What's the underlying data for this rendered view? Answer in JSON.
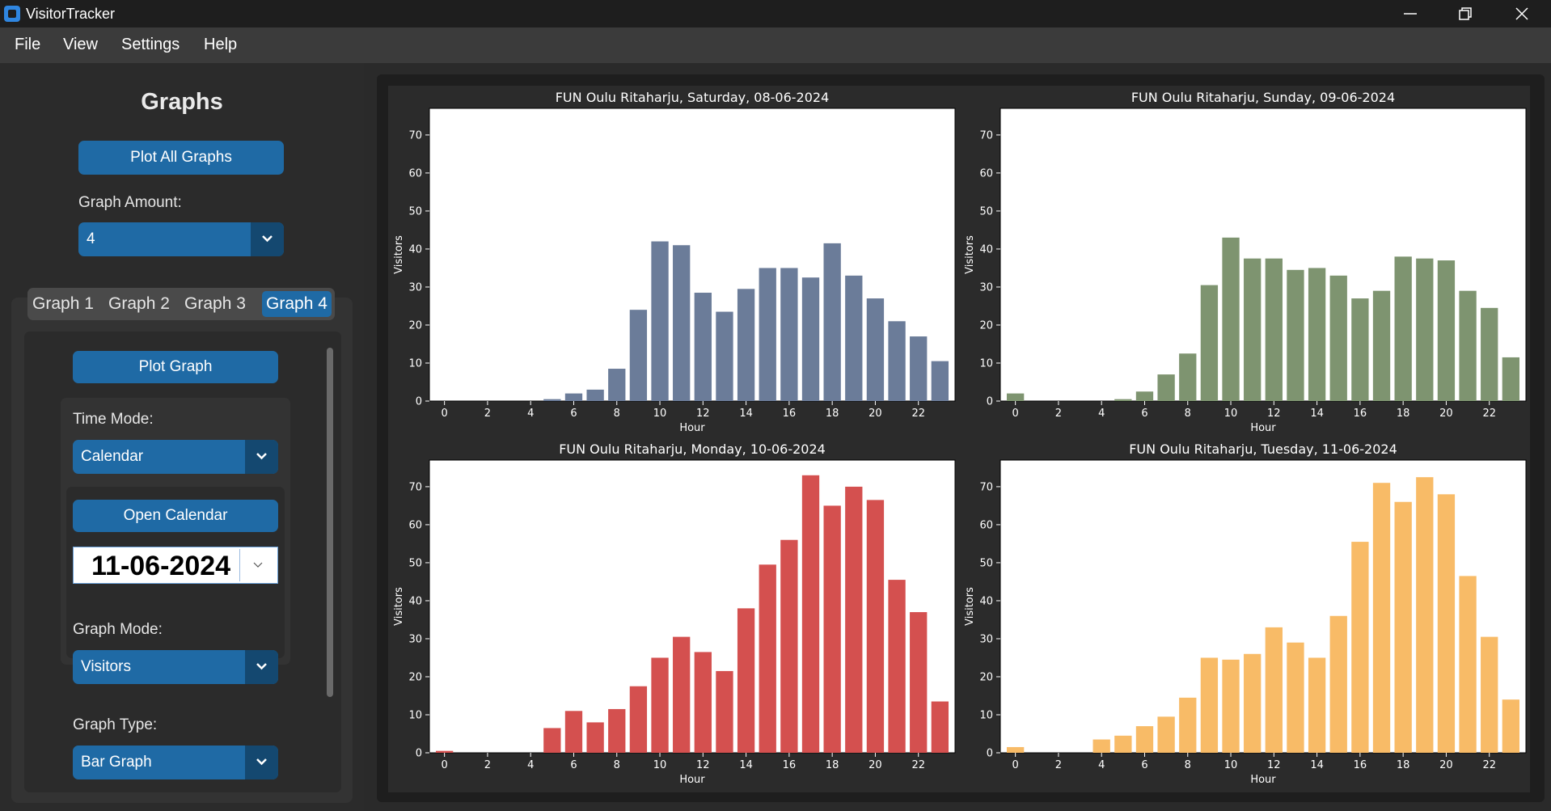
{
  "window": {
    "title": "VisitorTracker"
  },
  "menu": [
    "File",
    "View",
    "Settings",
    "Help"
  ],
  "sidebar": {
    "title": "Graphs",
    "plot_all_label": "Plot All Graphs",
    "graph_amount_label": "Graph Amount:",
    "graph_amount_value": "4",
    "tabs": [
      "Graph 1",
      "Graph 2",
      "Graph 3",
      "Graph 4"
    ],
    "selected_tab": "Graph 4",
    "plot_graph_label": "Plot Graph",
    "time_mode_label": "Time Mode:",
    "time_mode_value": "Calendar",
    "open_calendar_label": "Open Calendar",
    "date_value": "11-06-2024",
    "graph_mode_label": "Graph Mode:",
    "graph_mode_value": "Visitors",
    "graph_type_label": "Graph Type:",
    "graph_type_value": "Bar Graph"
  },
  "chart_data": [
    {
      "type": "bar",
      "title": "FUN Oulu Ritaharju, Saturday, 08-06-2024",
      "xlabel": "Hour",
      "ylabel": "Visitors",
      "x": [
        0,
        1,
        2,
        3,
        4,
        5,
        6,
        7,
        8,
        9,
        10,
        11,
        12,
        13,
        14,
        15,
        16,
        17,
        18,
        19,
        20,
        21,
        22,
        23
      ],
      "values": [
        0,
        0,
        0,
        0,
        0,
        0.5,
        2,
        3,
        8.5,
        24,
        42,
        41,
        28.5,
        23.5,
        29.5,
        35,
        35,
        32.5,
        41.5,
        33,
        27,
        21,
        17,
        10.5
      ],
      "ylim": [
        0,
        77
      ],
      "yticks": [
        0,
        10,
        20,
        30,
        40,
        50,
        60,
        70
      ],
      "xticks": [
        0,
        2,
        4,
        6,
        8,
        10,
        12,
        14,
        16,
        18,
        20,
        22
      ],
      "color": "#6b7c99"
    },
    {
      "type": "bar",
      "title": "FUN Oulu Ritaharju, Sunday, 09-06-2024",
      "xlabel": "Hour",
      "ylabel": "Visitors",
      "x": [
        0,
        1,
        2,
        3,
        4,
        5,
        6,
        7,
        8,
        9,
        10,
        11,
        12,
        13,
        14,
        15,
        16,
        17,
        18,
        19,
        20,
        21,
        22,
        23
      ],
      "values": [
        2,
        0,
        0,
        0,
        0,
        0.5,
        2.5,
        7,
        12.5,
        30.5,
        43,
        37.5,
        37.5,
        34.5,
        35,
        33,
        27,
        29,
        38,
        37.5,
        37,
        29,
        24.5,
        11.5
      ],
      "ylim": [
        0,
        77
      ],
      "yticks": [
        0,
        10,
        20,
        30,
        40,
        50,
        60,
        70
      ],
      "xticks": [
        0,
        2,
        4,
        6,
        8,
        10,
        12,
        14,
        16,
        18,
        20,
        22
      ],
      "color": "#7e9470"
    },
    {
      "type": "bar",
      "title": "FUN Oulu Ritaharju, Monday, 10-06-2024",
      "xlabel": "Hour",
      "ylabel": "Visitors",
      "x": [
        0,
        1,
        2,
        3,
        4,
        5,
        6,
        7,
        8,
        9,
        10,
        11,
        12,
        13,
        14,
        15,
        16,
        17,
        18,
        19,
        20,
        21,
        22,
        23
      ],
      "values": [
        0.5,
        0,
        0,
        0,
        0,
        6.5,
        11,
        8,
        11.5,
        17.5,
        25,
        30.5,
        26.5,
        21.5,
        38,
        49.5,
        56,
        73,
        65,
        70,
        66.5,
        45.5,
        37,
        13.5
      ],
      "ylim": [
        0,
        77
      ],
      "yticks": [
        0,
        10,
        20,
        30,
        40,
        50,
        60,
        70
      ],
      "xticks": [
        0,
        2,
        4,
        6,
        8,
        10,
        12,
        14,
        16,
        18,
        20,
        22
      ],
      "color": "#d4504f"
    },
    {
      "type": "bar",
      "title": "FUN Oulu Ritaharju, Tuesday, 11-06-2024",
      "xlabel": "Hour",
      "ylabel": "Visitors",
      "x": [
        0,
        1,
        2,
        3,
        4,
        5,
        6,
        7,
        8,
        9,
        10,
        11,
        12,
        13,
        14,
        15,
        16,
        17,
        18,
        19,
        20,
        21,
        22,
        23
      ],
      "values": [
        1.5,
        0,
        0,
        0,
        3.5,
        4.5,
        7,
        9.5,
        14.5,
        25,
        24.5,
        26,
        33,
        29,
        25,
        36,
        55.5,
        71,
        66,
        72.5,
        68,
        46.5,
        30.5,
        14
      ],
      "ylim": [
        0,
        77
      ],
      "yticks": [
        0,
        10,
        20,
        30,
        40,
        50,
        60,
        70
      ],
      "xticks": [
        0,
        2,
        4,
        6,
        8,
        10,
        12,
        14,
        16,
        18,
        20,
        22
      ],
      "color": "#f8bb67"
    }
  ]
}
